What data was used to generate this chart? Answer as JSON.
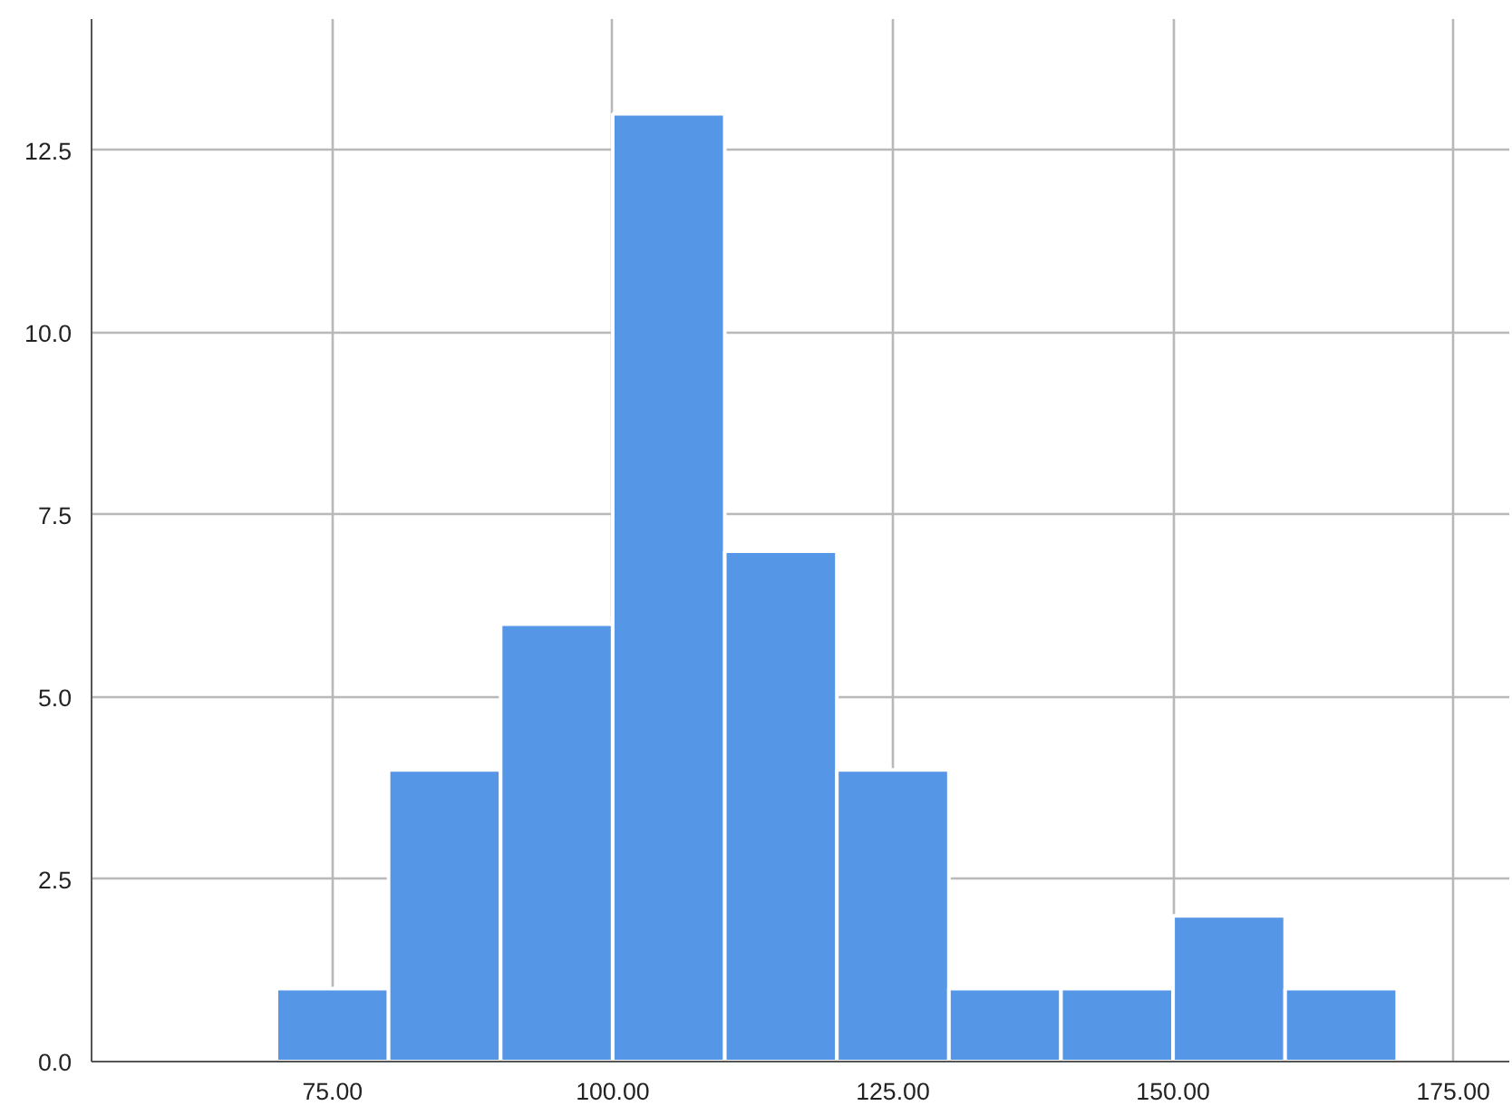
{
  "chart_data": {
    "type": "histogram",
    "bins": [
      70,
      80,
      90,
      100,
      110,
      120,
      130,
      140,
      150,
      160,
      170
    ],
    "values": [
      1,
      4,
      6,
      13,
      7,
      4,
      1,
      1,
      2,
      1
    ],
    "color": "#5596e6",
    "xlim": [
      53.5,
      180
    ],
    "ylim": [
      0,
      14.3
    ],
    "xticks": [
      {
        "value": 75,
        "label": "75.00"
      },
      {
        "value": 100,
        "label": "100.00"
      },
      {
        "value": 125,
        "label": "125.00"
      },
      {
        "value": 150,
        "label": "150.00"
      },
      {
        "value": 175,
        "label": "175.00"
      }
    ],
    "yticks": [
      {
        "value": 0,
        "label": "0.0"
      },
      {
        "value": 2.5,
        "label": "2.5"
      },
      {
        "value": 5,
        "label": "5.0"
      },
      {
        "value": 7.5,
        "label": "7.5"
      },
      {
        "value": 10,
        "label": "10.0"
      },
      {
        "value": 12.5,
        "label": "12.5"
      }
    ],
    "grid": true
  }
}
